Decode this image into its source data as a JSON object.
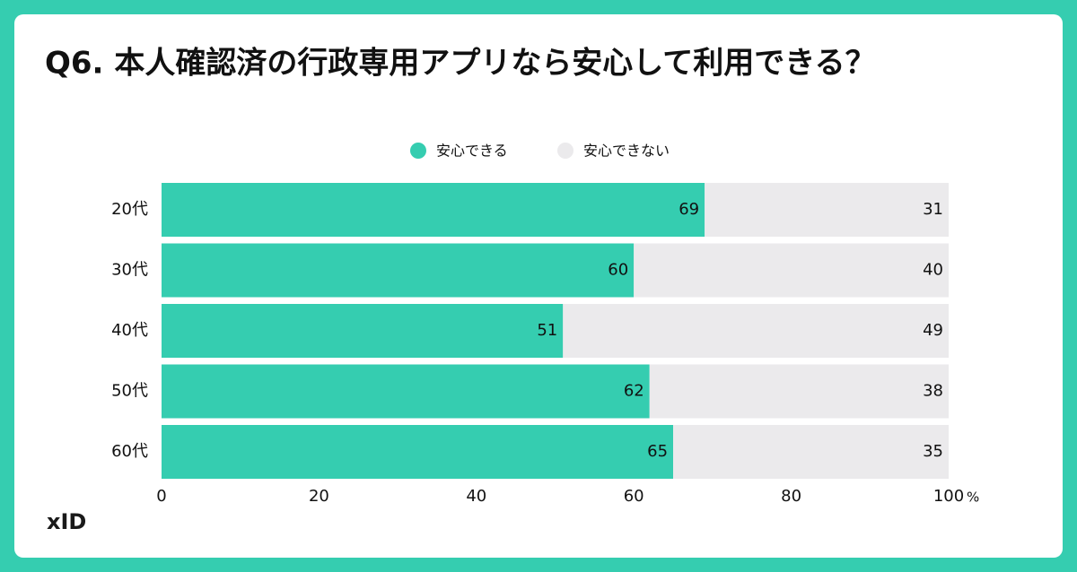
{
  "chart_data": {
    "type": "stacked-barh",
    "title": "Q6. 本人確認済の行政専用アプリなら安心して利用できる？",
    "categories": [
      "20代",
      "30代",
      "40代",
      "50代",
      "60代"
    ],
    "series": [
      {
        "name": "安心できる",
        "color": "#35cdb0",
        "values": [
          69,
          60,
          51,
          62,
          65
        ]
      },
      {
        "name": "安心できない",
        "color": "#ebeaec",
        "values": [
          31,
          40,
          49,
          38,
          35
        ]
      }
    ],
    "xlim": [
      0,
      100
    ],
    "xticks": [
      0,
      20,
      40,
      60,
      80,
      100
    ],
    "xlabel": "%",
    "legend": "top"
  },
  "logo": "xID"
}
